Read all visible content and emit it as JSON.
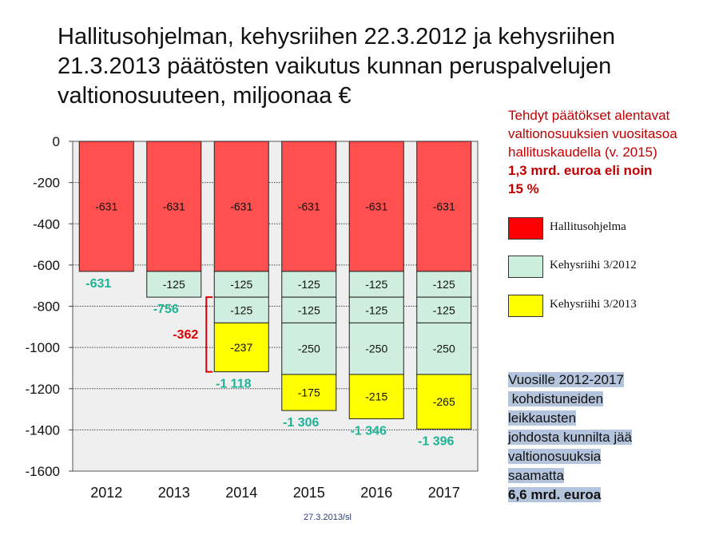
{
  "title_lines": [
    "Hallitusohjelman, kehysriihen 22.3.2012 ja kehysriihen",
    "21.3.2013 päätösten vaikutus kunnan peruspalvelujen",
    "valtionosuuteen, miljoonaa €"
  ],
  "note": {
    "lines": [
      "Tehdyt päätökset  alentavat",
      "valtionosuuksien vuositasoa",
      "hallituskaudella (v. 2015)"
    ],
    "bold_lines": [
      "1,3 mrd. euroa eli noin",
      "15 %"
    ]
  },
  "legend": [
    {
      "label": "Hallitusohjelma",
      "color": "#ff0000"
    },
    {
      "label": "Kehysriihi 3/2012",
      "color": "#cceedd"
    },
    {
      "label": "Kehysriihi 3/2013",
      "color": "#ffff00"
    }
  ],
  "summary": {
    "lines": [
      "Vuosille 2012-2017",
      " kohdistuneiden",
      "leikkausten",
      "johdosta kunnilta jää",
      "valtionosuuksia",
      "saamatta"
    ],
    "bold_line": "6,6 mrd. euroa"
  },
  "footer": "27.3.2013/sl",
  "colors": {
    "red_segment": "#ff4f4f",
    "green_segment": "#cfeee0",
    "yellow_segment": "#ffff00",
    "total_label": "#1fb396",
    "bracket": "#dd0000"
  },
  "chart_data": {
    "type": "stacked-bar",
    "categories": [
      "2012",
      "2013",
      "2014",
      "2015",
      "2016",
      "2017"
    ],
    "ylim": [
      -1600,
      0
    ],
    "yticks": [
      0,
      -200,
      -400,
      -600,
      -800,
      -1000,
      -1200,
      -1400,
      -1600
    ],
    "ytick_labels": [
      "0",
      "-200",
      "-400",
      "-600",
      "-800",
      "-1000",
      "-1200",
      "-1400",
      "-1600"
    ],
    "segments": [
      [
        {
          "value": -631,
          "label": "-631",
          "kind": "red"
        }
      ],
      [
        {
          "value": -631,
          "label": "-631",
          "kind": "red"
        },
        {
          "value": -125,
          "label": "-125",
          "kind": "green"
        }
      ],
      [
        {
          "value": -631,
          "label": "-631",
          "kind": "red"
        },
        {
          "value": -125,
          "label": "-125",
          "kind": "green"
        },
        {
          "value": -125,
          "label": "-125",
          "kind": "green"
        },
        {
          "value": -237,
          "label": "-237",
          "kind": "yellow"
        }
      ],
      [
        {
          "value": -631,
          "label": "-631",
          "kind": "red"
        },
        {
          "value": -125,
          "label": "-125",
          "kind": "green"
        },
        {
          "value": -125,
          "label": "-125",
          "kind": "green"
        },
        {
          "value": -250,
          "label": "-250",
          "kind": "green"
        },
        {
          "value": -175,
          "label": "-175",
          "kind": "yellow"
        }
      ],
      [
        {
          "value": -631,
          "label": "-631",
          "kind": "red"
        },
        {
          "value": -125,
          "label": "-125",
          "kind": "green"
        },
        {
          "value": -125,
          "label": "-125",
          "kind": "green"
        },
        {
          "value": -250,
          "label": "-250",
          "kind": "green"
        },
        {
          "value": -215,
          "label": "-215",
          "kind": "yellow"
        }
      ],
      [
        {
          "value": -631,
          "label": "-631",
          "kind": "red"
        },
        {
          "value": -125,
          "label": "-125",
          "kind": "green"
        },
        {
          "value": -125,
          "label": "-125",
          "kind": "green"
        },
        {
          "value": -250,
          "label": "-250",
          "kind": "green"
        },
        {
          "value": -265,
          "label": "-265",
          "kind": "yellow"
        }
      ]
    ],
    "totals": [
      -631,
      -756,
      -1118,
      -1306,
      -1346,
      -1396
    ],
    "total_labels": [
      "-631",
      "-756",
      "-1 118",
      "-1 306",
      "-1 346",
      "-1 396"
    ],
    "bracket": {
      "label": "-362",
      "from": -756,
      "to": -1118,
      "category": "2014"
    }
  }
}
